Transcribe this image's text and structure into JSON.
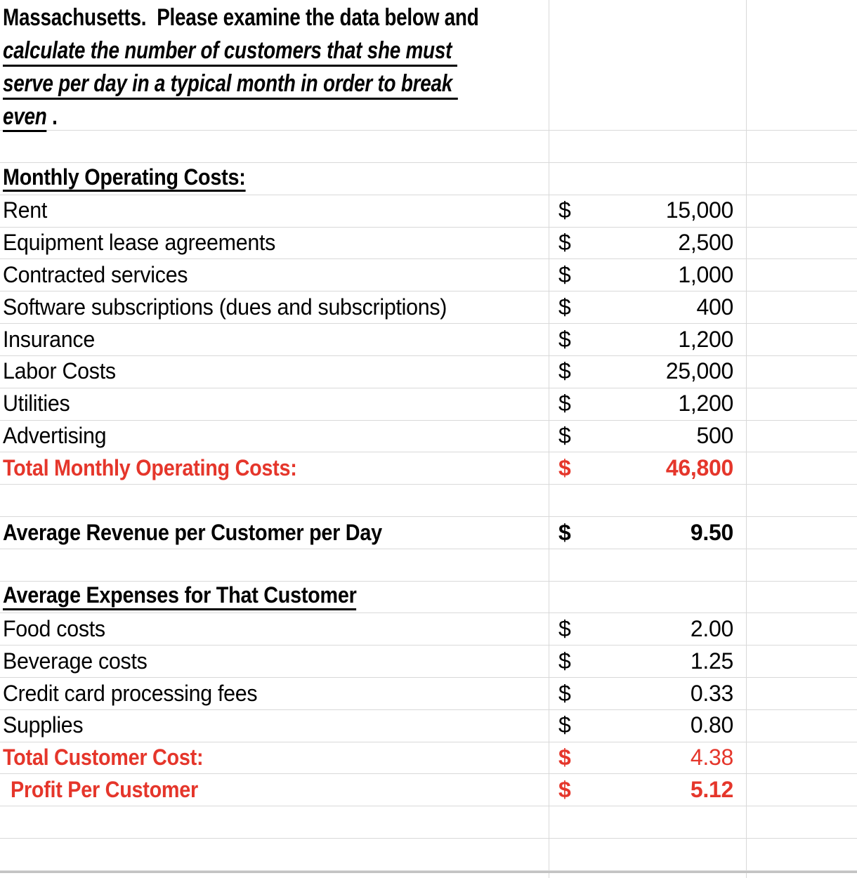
{
  "intro": {
    "line1": "Massachusetts.  Please examine the data below and",
    "line2": "calculate the number of customers that she must ",
    "line3": "serve per day in a typical month in order to break ",
    "line4_underlined": "even",
    "line4_suffix": " ."
  },
  "colors": {
    "text": "#000000",
    "accent_red": "#E5362B",
    "gridline": "#D9D9D9",
    "gridline_bottom": "#C3C3C3",
    "background": "#FFFFFF"
  },
  "rows": [
    {
      "label": "Monthly Operating Costs:"
    },
    {
      "label": "Rent",
      "currency": "$",
      "value": "15,000"
    },
    {
      "label": "Equipment lease agreements",
      "currency": "$",
      "value": "2,500"
    },
    {
      "label": "Contracted services",
      "currency": "$",
      "value": "1,000"
    },
    {
      "label": "Software subscriptions (dues and subscriptions)",
      "currency": "$",
      "value": "400"
    },
    {
      "label": "Insurance",
      "currency": "$",
      "value": "1,200"
    },
    {
      "label": "Labor Costs",
      "currency": "$",
      "value": "25,000"
    },
    {
      "label": "Utilities",
      "currency": "$",
      "value": "1,200"
    },
    {
      "label": "Advertising",
      "currency": "$",
      "value": "500"
    },
    {
      "label": "Total Monthly Operating Costs:",
      "currency": "$",
      "value": "46,800"
    },
    {},
    {
      "label": "Average Revenue per Customer per Day",
      "currency": "$",
      "value": "9.50"
    },
    {},
    {
      "label": "Average Expenses for That Customer"
    },
    {
      "label": "Food costs",
      "currency": "$",
      "value": "2.00"
    },
    {
      "label": "Beverage costs",
      "currency": "$",
      "value": "1.25"
    },
    {
      "label": "Credit card processing fees",
      "currency": "$",
      "value": "0.33"
    },
    {
      "label": "Supplies",
      "currency": "$",
      "value": "0.80"
    },
    {
      "label": "Total Customer Cost:",
      "currency": "$",
      "value": "4.38"
    },
    {
      "label": "Profit Per Customer",
      "currency": "$",
      "value": "5.12"
    },
    {},
    {}
  ]
}
